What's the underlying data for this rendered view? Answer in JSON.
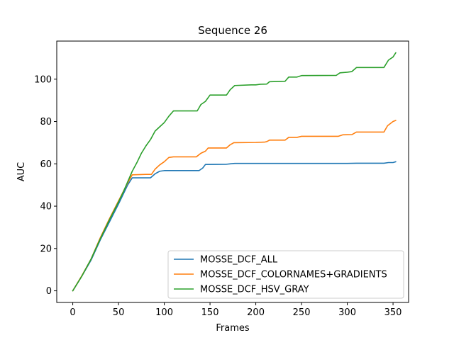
{
  "chart_data": {
    "type": "line",
    "title": "Sequence 26",
    "xlabel": "Frames",
    "ylabel": "AUC",
    "xlim": [
      -17.5,
      367
    ],
    "ylim": [
      -5.5,
      118
    ],
    "xticks": [
      0,
      50,
      100,
      150,
      200,
      250,
      300,
      350
    ],
    "yticks": [
      0,
      20,
      40,
      60,
      80,
      100
    ],
    "grid": false,
    "legend_position": "lower-right",
    "series": [
      {
        "name": "MOSSE_DCF_ALL",
        "color": "#1f77b4",
        "points": [
          [
            0,
            0
          ],
          [
            10,
            7
          ],
          [
            20,
            14.5
          ],
          [
            30,
            24
          ],
          [
            40,
            32.5
          ],
          [
            50,
            41
          ],
          [
            60,
            50
          ],
          [
            65,
            53.4
          ],
          [
            85,
            53.4
          ],
          [
            90,
            55.3
          ],
          [
            95,
            56.5
          ],
          [
            100,
            56.8
          ],
          [
            110,
            56.8
          ],
          [
            138,
            56.8
          ],
          [
            142,
            58
          ],
          [
            145,
            59.7
          ],
          [
            168,
            59.8
          ],
          [
            172,
            60
          ],
          [
            177,
            60.2
          ],
          [
            300,
            60.2
          ],
          [
            310,
            60.3
          ],
          [
            340,
            60.3
          ],
          [
            345,
            60.6
          ],
          [
            350,
            60.6
          ],
          [
            353,
            61
          ]
        ]
      },
      {
        "name": "MOSSE_DCF_COLORNAMES+GRADIENTS",
        "color": "#ff7f0e",
        "points": [
          [
            0,
            0
          ],
          [
            10,
            7.2
          ],
          [
            20,
            15
          ],
          [
            30,
            25
          ],
          [
            40,
            34
          ],
          [
            50,
            42.5
          ],
          [
            60,
            51
          ],
          [
            65,
            54.8
          ],
          [
            80,
            55
          ],
          [
            86,
            55
          ],
          [
            90,
            57.5
          ],
          [
            95,
            59.5
          ],
          [
            100,
            61
          ],
          [
            105,
            63
          ],
          [
            110,
            63.3
          ],
          [
            135,
            63.3
          ],
          [
            140,
            65
          ],
          [
            145,
            66
          ],
          [
            148,
            67.5
          ],
          [
            168,
            67.5
          ],
          [
            172,
            69
          ],
          [
            176,
            70
          ],
          [
            200,
            70.1
          ],
          [
            210,
            70.3
          ],
          [
            212,
            70.5
          ],
          [
            215,
            71.2
          ],
          [
            232,
            71.2
          ],
          [
            236,
            72.5
          ],
          [
            245,
            72.5
          ],
          [
            250,
            73
          ],
          [
            290,
            73
          ],
          [
            295,
            73.7
          ],
          [
            305,
            73.8
          ],
          [
            310,
            75
          ],
          [
            340,
            75
          ],
          [
            344,
            78
          ],
          [
            350,
            80
          ],
          [
            353,
            80.5
          ]
        ]
      },
      {
        "name": "MOSSE_DCF_HSV_GRAY",
        "color": "#2ca02c",
        "points": [
          [
            0,
            0
          ],
          [
            10,
            7
          ],
          [
            20,
            15
          ],
          [
            30,
            24.5
          ],
          [
            40,
            33.5
          ],
          [
            50,
            42
          ],
          [
            55,
            46.5
          ],
          [
            60,
            51.5
          ],
          [
            65,
            56.5
          ],
          [
            70,
            60.5
          ],
          [
            75,
            65
          ],
          [
            80,
            68.5
          ],
          [
            85,
            71.5
          ],
          [
            90,
            75.5
          ],
          [
            95,
            77.5
          ],
          [
            100,
            79.5
          ],
          [
            105,
            82.5
          ],
          [
            110,
            85
          ],
          [
            136,
            85
          ],
          [
            140,
            88
          ],
          [
            145,
            89.5
          ],
          [
            150,
            92.5
          ],
          [
            168,
            92.5
          ],
          [
            172,
            95
          ],
          [
            177,
            97
          ],
          [
            195,
            97.3
          ],
          [
            200,
            97.3
          ],
          [
            205,
            97.6
          ],
          [
            212,
            97.7
          ],
          [
            215,
            98.8
          ],
          [
            232,
            99
          ],
          [
            236,
            101
          ],
          [
            245,
            101
          ],
          [
            250,
            101.7
          ],
          [
            288,
            101.8
          ],
          [
            292,
            103
          ],
          [
            300,
            103.3
          ],
          [
            305,
            103.6
          ],
          [
            310,
            105.5
          ],
          [
            340,
            105.5
          ],
          [
            345,
            109
          ],
          [
            350,
            110.5
          ],
          [
            353,
            112.5
          ]
        ]
      }
    ]
  }
}
